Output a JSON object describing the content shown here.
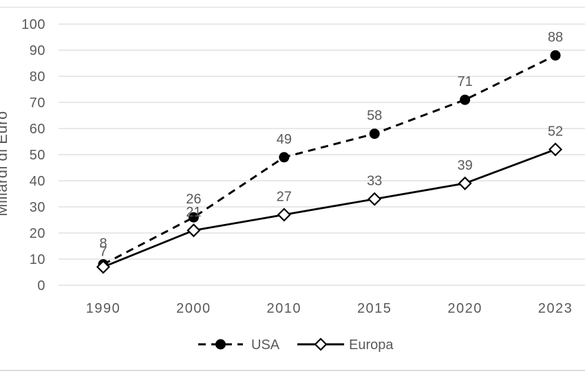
{
  "chart_data": {
    "type": "line",
    "title": "",
    "xlabel": "",
    "ylabel": "Miliardi di Euro",
    "categories": [
      "1990",
      "2000",
      "2010",
      "2015",
      "2020",
      "2023"
    ],
    "series": [
      {
        "name": "USA",
        "values": [
          8,
          26,
          49,
          58,
          71,
          88
        ],
        "line_style": "dashed",
        "marker": "filled-circle",
        "color": "#000000"
      },
      {
        "name": "Europa",
        "values": [
          7,
          21,
          27,
          33,
          39,
          52
        ],
        "line_style": "solid",
        "marker": "open-diamond",
        "color": "#000000"
      }
    ],
    "ylim": [
      0,
      100
    ],
    "yticks": [
      0,
      10,
      20,
      30,
      40,
      50,
      60,
      70,
      80,
      90,
      100
    ],
    "grid": "horizontal",
    "data_labels": "above",
    "legend_position": "bottom-center"
  },
  "colors": {
    "gridline": "#D9D9D9",
    "axis_text": "#595959",
    "data_label_text": "#595959",
    "legend_text": "#595959",
    "series_line": "#000000",
    "page_border": "#DCDCDC",
    "background": "#FFFFFF"
  }
}
